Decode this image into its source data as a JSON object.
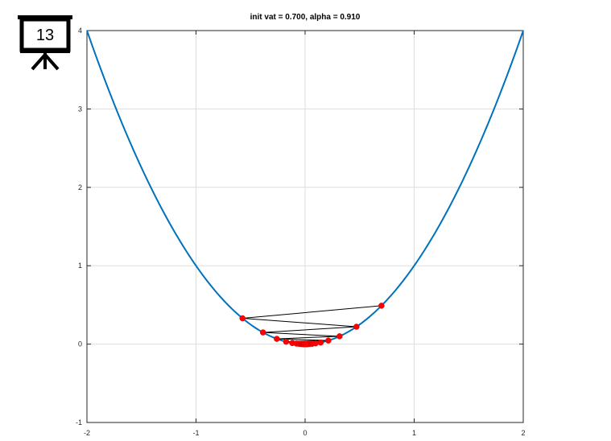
{
  "slide_badge": {
    "number": "13",
    "icon": "presentation-board-icon"
  },
  "chart_data": {
    "type": "line",
    "title": "init vat = 0.700, alpha = 0.910",
    "xlabel": "",
    "ylabel": "",
    "xlim": [
      -2,
      2
    ],
    "ylim": [
      -1,
      4
    ],
    "xticks": [
      "-2",
      "-1",
      "0",
      "1",
      "2"
    ],
    "yticks": [
      "-1",
      "0",
      "1",
      "2",
      "3",
      "4"
    ],
    "grid": true,
    "colors": {
      "curve": "#0072BD",
      "iterates": "#ff0000",
      "path": "#000000"
    },
    "series": [
      {
        "function": "y = x^2",
        "x_range": [
          -2,
          2
        ]
      }
    ],
    "iterates": {
      "init": 0.7,
      "alpha": 0.91,
      "x": [
        0.7,
        -0.574,
        0.471,
        -0.386,
        0.316,
        -0.259,
        0.213,
        -0.174,
        0.143,
        -0.117,
        0.096,
        -0.079,
        0.065,
        -0.053,
        0.043,
        -0.036,
        0.029,
        -0.024,
        0.02,
        -0.016,
        0.013,
        -0.011,
        0.009,
        -0.007,
        0.006
      ]
    }
  }
}
